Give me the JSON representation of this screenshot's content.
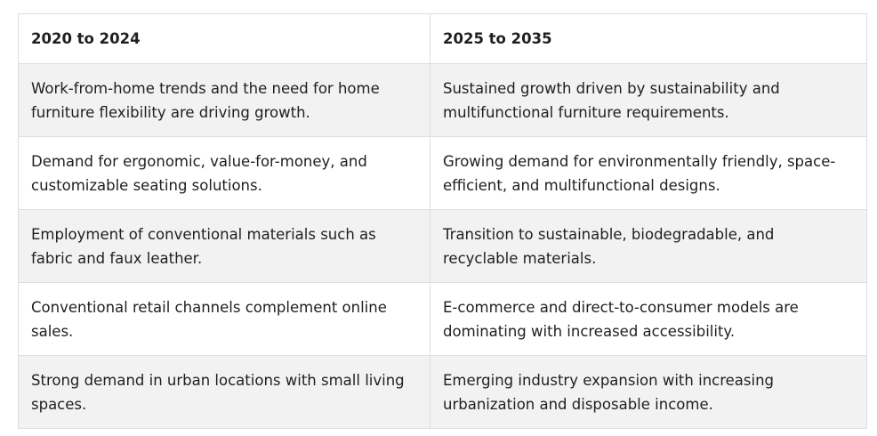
{
  "table": {
    "headers": [
      "2020 to 2024",
      "2025 to 2035"
    ],
    "rows": [
      [
        "Work-from-home trends and the need for home furniture flexibility are driving growth.",
        "Sustained growth driven by sustainability and multifunctional furniture requirements."
      ],
      [
        "Demand for ergonomic, value-for-money, and customizable seating solutions.",
        "Growing demand for environmentally friendly, space-efficient, and multifunctional designs."
      ],
      [
        "Employment of conventional materials such as fabric and faux leather.",
        "Transition to sustainable, biodegradable, and recyclable materials."
      ],
      [
        "Conventional retail channels complement online sales.",
        "E-commerce and direct-to-consumer models are dominating with increased accessibility."
      ],
      [
        "Strong demand in urban locations with small living spaces.",
        "Emerging industry expansion with increasing urbanization and disposable income."
      ]
    ]
  },
  "colors": {
    "border": "#dedede",
    "shaded_row": "#f2f2f2",
    "plain_row": "#ffffff",
    "text": "#1f1f1f"
  }
}
